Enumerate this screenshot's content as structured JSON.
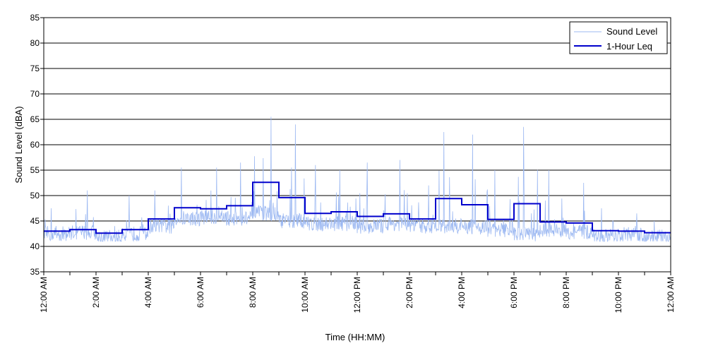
{
  "chart_data": {
    "type": "line",
    "xlabel": "Time (HH:MM)",
    "ylabel": "Sound Level (dBA)",
    "ylim": [
      35,
      85
    ],
    "yticks": [
      35,
      40,
      45,
      50,
      55,
      60,
      65,
      70,
      75,
      80,
      85
    ],
    "xlim_hours": [
      0,
      24
    ],
    "x_tick_hours": [
      0,
      2,
      4,
      6,
      8,
      10,
      12,
      14,
      16,
      18,
      20,
      22,
      24
    ],
    "x_tick_labels": [
      "12:00 AM",
      "2:00 AM",
      "4:00 AM",
      "6:00 AM",
      "8:00 AM",
      "10:00 AM",
      "12:00 PM",
      "2:00 PM",
      "4:00 PM",
      "6:00 PM",
      "8:00 PM",
      "10:00 PM",
      "12:00 AM"
    ],
    "grid": "horizontal",
    "legend_position": "top-right",
    "series": [
      {
        "name": "Sound Level",
        "color": "#9db9f2",
        "style": "thin-noisy-line",
        "hourly_baseline": [
          42.5,
          42.8,
          41.8,
          42.5,
          44.0,
          45.5,
          45.8,
          45.5,
          46.5,
          45.0,
          44.5,
          44.5,
          44.0,
          44.5,
          44.0,
          44.0,
          43.8,
          43.2,
          42.5,
          43.2,
          42.8,
          42.0,
          42.3,
          41.8
        ],
        "hourly_max": [
          47.5,
          51.0,
          44.0,
          50.0,
          51.0,
          55.5,
          55.5,
          56.5,
          65.5,
          64.0,
          56.0,
          55.0,
          56.5,
          57.0,
          52.0,
          62.5,
          62.0,
          55.0,
          63.5,
          55.0,
          52.5,
          47.5,
          46.5,
          45.0
        ]
      },
      {
        "name": "1-Hour Leq",
        "color": "#0000cc",
        "style": "step",
        "values": [
          43.0,
          43.3,
          42.6,
          43.3,
          45.4,
          47.6,
          47.4,
          48.0,
          52.6,
          49.6,
          46.5,
          46.8,
          45.9,
          46.4,
          45.4,
          49.4,
          48.2,
          45.3,
          48.4,
          44.8,
          44.6,
          43.1,
          43.0,
          42.7
        ]
      }
    ]
  }
}
